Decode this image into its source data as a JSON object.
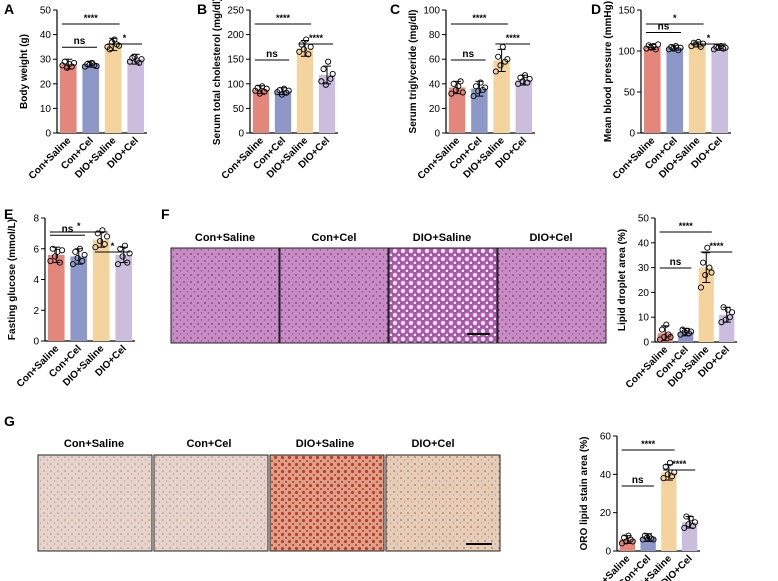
{
  "colors": {
    "con_saline": "#e3867c",
    "con_cel": "#8d98c8",
    "dio_saline": "#f4d39e",
    "dio_cel": "#cbbddd",
    "he_tissue": "#c784bf",
    "oro_tissue": "#e9d2c6",
    "oro_dio": "#d98769"
  },
  "histology": {
    "he": {
      "panel_letter": "F",
      "titles": [
        "Con+Saline",
        "Con+Cel",
        "DIO+Saline",
        "DIO+Cel"
      ]
    },
    "oro": {
      "panel_letter": "G",
      "titles": [
        "Con+Saline",
        "Con+Cel",
        "DIO+Saline",
        "DIO+Cel"
      ]
    }
  },
  "chart_data": [
    {
      "panel": "A",
      "type": "bar",
      "categories": [
        "Con+Saline",
        "Con+Cel",
        "DIO+Saline",
        "DIO+Cel"
      ],
      "values": [
        28,
        28,
        36,
        30
      ],
      "errors": [
        2,
        1.2,
        2.5,
        2
      ],
      "points": [
        [
          27.5,
          29,
          26.5,
          28,
          27,
          28.5
        ],
        [
          27,
          28,
          27.8,
          28.5,
          27.5,
          27.2
        ],
        [
          35,
          34,
          37,
          38,
          36,
          35.5
        ],
        [
          29,
          30.5,
          31,
          29.5,
          28.5,
          30
        ]
      ],
      "ylabel": "Body weight (g)",
      "ylim": [
        0,
        50
      ],
      "yticks": [
        0,
        10,
        20,
        30,
        40,
        50
      ],
      "sig": [
        {
          "from": 0,
          "to": 2,
          "label": "****"
        },
        {
          "from": 0,
          "to": 1,
          "label": "ns"
        },
        {
          "from": 2,
          "to": 3,
          "label": "*"
        }
      ]
    },
    {
      "panel": "B",
      "type": "bar",
      "categories": [
        "Con+Saline",
        "Con+Cel",
        "DIO+Saline",
        "DIO+Cel"
      ],
      "values": [
        88,
        85,
        172,
        118
      ],
      "errors": [
        8,
        7,
        16,
        18
      ],
      "points": [
        [
          86,
          92,
          80,
          95,
          84,
          90
        ],
        [
          83,
          87,
          78,
          90,
          82,
          86
        ],
        [
          165,
          180,
          170,
          190,
          160,
          175
        ],
        [
          105,
          130,
          98,
          145,
          110,
          120
        ]
      ],
      "ylabel": "Serum total cholesterol (mg/dl)",
      "ylim": [
        0,
        250
      ],
      "yticks": [
        0,
        50,
        100,
        150,
        200,
        250
      ],
      "sig": [
        {
          "from": 0,
          "to": 2,
          "label": "****"
        },
        {
          "from": 0,
          "to": 1,
          "label": "ns"
        },
        {
          "from": 2,
          "to": 3,
          "label": "****"
        }
      ]
    },
    {
      "panel": "C",
      "type": "bar",
      "categories": [
        "Con+Saline",
        "Con+Cel",
        "DIO+Saline",
        "DIO+Cel"
      ],
      "values": [
        37,
        36,
        59,
        43
      ],
      "errors": [
        5,
        6,
        9,
        4
      ],
      "points": [
        [
          32,
          40,
          35,
          38,
          42,
          33
        ],
        [
          30,
          38,
          34,
          41,
          35,
          37
        ],
        [
          50,
          62,
          55,
          70,
          58,
          60
        ],
        [
          40,
          45,
          42,
          47,
          41,
          44
        ]
      ],
      "ylabel": "Serum triglyceride (mg/dl)",
      "ylim": [
        0,
        100
      ],
      "yticks": [
        0,
        20,
        40,
        60,
        80,
        100
      ],
      "sig": [
        {
          "from": 0,
          "to": 2,
          "label": "****"
        },
        {
          "from": 0,
          "to": 1,
          "label": "ns"
        },
        {
          "from": 2,
          "to": 3,
          "label": "****"
        }
      ]
    },
    {
      "panel": "D",
      "type": "bar",
      "categories": [
        "Con+Saline",
        "Con+Cel",
        "DIO+Saline",
        "DIO+Cel"
      ],
      "values": [
        105,
        104,
        108,
        104
      ],
      "errors": [
        3,
        3,
        3,
        3
      ],
      "points": [
        [
          103,
          107,
          104,
          106,
          102,
          108
        ],
        [
          102,
          105,
          103,
          106,
          101,
          104
        ],
        [
          106,
          110,
          108,
          111,
          105,
          109
        ],
        [
          102,
          105,
          104,
          106,
          103,
          104
        ]
      ],
      "ylabel": "Mean blood pressure (mmHg)",
      "ylim": [
        0,
        150
      ],
      "yticks": [
        0,
        50,
        100,
        150
      ],
      "sig": [
        {
          "from": 0,
          "to": 2,
          "label": "*"
        },
        {
          "from": 0,
          "to": 1,
          "label": "ns"
        },
        {
          "from": 2,
          "to": 3,
          "label": "*"
        }
      ]
    },
    {
      "panel": "E",
      "type": "bar",
      "categories": [
        "Con+Saline",
        "Con+Cel",
        "DIO+Saline",
        "DIO+Cel"
      ],
      "values": [
        5.6,
        5.5,
        6.6,
        5.6
      ],
      "errors": [
        0.5,
        0.5,
        0.5,
        0.5
      ],
      "points": [
        [
          5.2,
          6.0,
          5.5,
          5.8,
          5.1,
          5.9
        ],
        [
          5.0,
          5.8,
          5.4,
          6.0,
          5.2,
          5.6
        ],
        [
          6.1,
          7.0,
          6.5,
          7.2,
          6.3,
          6.8
        ],
        [
          5.0,
          6.0,
          5.5,
          6.2,
          5.1,
          5.7
        ]
      ],
      "ylabel": "Fasting glucose (mmol/L)",
      "ylim": [
        0,
        8
      ],
      "yticks": [
        0,
        2,
        4,
        6,
        8
      ],
      "sig": [
        {
          "from": 0,
          "to": 2,
          "label": "*"
        },
        {
          "from": 0,
          "to": 1,
          "label": "ns"
        },
        {
          "from": 2,
          "to": 3,
          "label": "*"
        }
      ]
    },
    {
      "panel": "F-quant",
      "type": "bar",
      "categories": [
        "Con+Saline",
        "Con+Cel",
        "DIO+Saline",
        "DIO+Cel"
      ],
      "values": [
        3.5,
        4,
        30,
        11
      ],
      "errors": [
        3,
        1.5,
        6,
        3
      ],
      "points": [
        [
          1,
          5,
          2,
          7,
          3,
          2
        ],
        [
          3,
          5,
          4,
          4.5,
          3.5,
          4.2
        ],
        [
          22,
          32,
          27,
          38,
          30,
          28
        ],
        [
          8,
          14,
          9,
          13,
          10,
          12
        ]
      ],
      "ylabel": "Lipid droplet area (%)",
      "ylim": [
        0,
        50
      ],
      "yticks": [
        0,
        10,
        20,
        30,
        40,
        50
      ],
      "sig": [
        {
          "from": 0,
          "to": 2,
          "label": "****"
        },
        {
          "from": 0,
          "to": 1,
          "label": "ns"
        },
        {
          "from": 2,
          "to": 3,
          "label": "****"
        }
      ]
    },
    {
      "panel": "G-quant",
      "type": "bar",
      "categories": [
        "Con+Saline",
        "Con+Cel",
        "DIO+Saline",
        "DIO+Cel"
      ],
      "values": [
        6,
        7,
        41,
        15
      ],
      "errors": [
        2,
        2,
        4,
        3
      ],
      "points": [
        [
          4,
          7,
          5,
          8,
          6,
          5
        ],
        [
          6,
          8,
          7,
          7.5,
          6.5,
          6
        ],
        [
          38,
          44,
          40,
          46,
          39,
          41
        ],
        [
          12,
          18,
          14,
          17,
          13,
          15
        ]
      ],
      "ylabel": "ORO lipid stain area (%)",
      "ylim": [
        0,
        60
      ],
      "yticks": [
        0,
        20,
        40,
        60
      ],
      "sig": [
        {
          "from": 0,
          "to": 2,
          "label": "****"
        },
        {
          "from": 0,
          "to": 1,
          "label": "ns"
        },
        {
          "from": 2,
          "to": 3,
          "label": "****"
        }
      ]
    }
  ]
}
